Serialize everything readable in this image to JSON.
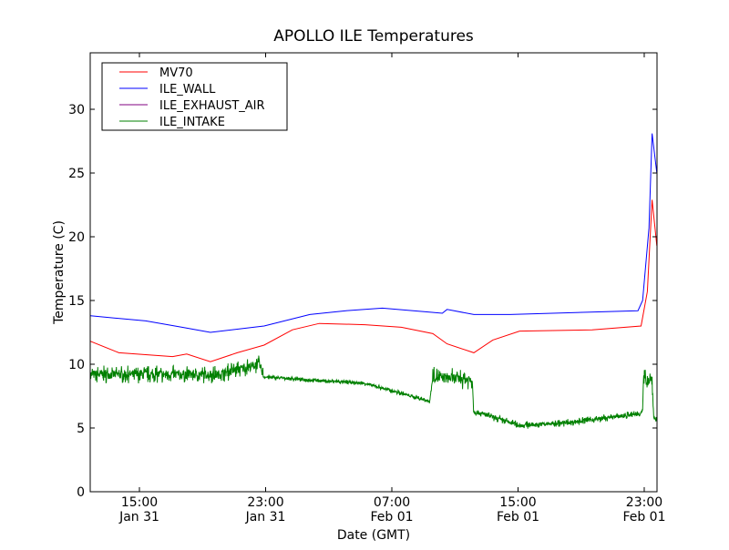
{
  "chart_data": {
    "type": "line",
    "title": "APOLLO ILE Temperatures",
    "xlabel": "Date (GMT)",
    "ylabel": "Temperature (C)",
    "x_units": "hours since Jan 31 00:00 GMT",
    "xlim": [
      11.88,
      47.81
    ],
    "ylim": [
      0,
      34.43
    ],
    "grid": false,
    "legend_position": "top-left",
    "yticks": [
      0,
      5,
      10,
      15,
      20,
      25,
      30
    ],
    "xticks": [
      {
        "value": 15,
        "time": "15:00",
        "date": "Jan 31"
      },
      {
        "value": 23,
        "time": "23:00",
        "date": "Jan 31"
      },
      {
        "value": 31,
        "time": "07:00",
        "date": "Feb 01"
      },
      {
        "value": 39,
        "time": "15:00",
        "date": "Feb 01"
      },
      {
        "value": 47,
        "time": "23:00",
        "date": "Feb 01"
      }
    ],
    "series": [
      {
        "name": "MV70",
        "color": "#ff0000",
        "x": [
          11.9,
          13.7,
          16.0,
          17.1,
          18.0,
          19.5,
          21.2,
          22.9,
          24.7,
          26.4,
          29.3,
          31.6,
          33.6,
          34.5,
          36.2,
          37.4,
          39.1,
          43.7,
          46.8,
          47.2,
          47.5,
          47.8
        ],
        "y": [
          11.8,
          10.9,
          10.7,
          10.6,
          10.8,
          10.2,
          10.9,
          11.5,
          12.7,
          13.2,
          13.1,
          12.9,
          12.4,
          11.6,
          10.9,
          11.9,
          12.6,
          12.7,
          13.0,
          15.7,
          22.9,
          19.3
        ],
        "noise": []
      },
      {
        "name": "ILE_WALL",
        "color": "#0000ff",
        "x": [
          11.9,
          15.4,
          17.7,
          19.5,
          22.9,
          25.8,
          28.1,
          30.4,
          33.3,
          34.2,
          34.5,
          36.2,
          38.5,
          46.6,
          46.9,
          47.3,
          47.5,
          47.8
        ],
        "y": [
          13.8,
          13.4,
          12.9,
          12.5,
          13.0,
          13.9,
          14.2,
          14.4,
          14.1,
          14.0,
          14.3,
          13.9,
          13.9,
          14.2,
          15.0,
          20.7,
          28.1,
          25.0
        ],
        "noise": []
      },
      {
        "name": "ILE_EXHAUST_AIR",
        "color": "#800080",
        "x": [],
        "y": [],
        "noise": []
      },
      {
        "name": "ILE_INTAKE",
        "color": "#008000",
        "x": [
          11.9,
          20.0,
          22.6,
          22.9,
          29.3,
          33.4,
          33.6,
          36.1,
          36.2,
          39.1,
          42.0,
          46.6,
          46.9,
          46.95,
          47.5,
          47.6,
          47.8
        ],
        "y": [
          9.2,
          9.2,
          10.0,
          9.0,
          8.5,
          7.1,
          9.0,
          8.8,
          6.3,
          5.2,
          5.4,
          6.1,
          6.3,
          8.8,
          8.8,
          5.8,
          5.6
        ],
        "noise": [
          0.7,
          0.7,
          0.6,
          0.2,
          0.2,
          0.15,
          0.8,
          0.8,
          0.3,
          0.3,
          0.3,
          0.3,
          0.3,
          0.8,
          0.8,
          0.3,
          0.3
        ]
      }
    ]
  }
}
